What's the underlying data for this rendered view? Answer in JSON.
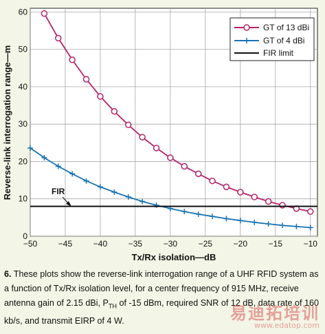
{
  "colors": {
    "background": "#f3f5e6",
    "gt13": "#b32469",
    "gt4": "#1874b4",
    "fir": "#111111"
  },
  "chart_data": {
    "type": "line",
    "xlabel": "Tx/Rx isolation—dB",
    "ylabel": "Reverse-link interrogation range—m",
    "xlim": [
      -50,
      -9
    ],
    "ylim": [
      0,
      61
    ],
    "x_ticks": [
      -50,
      -45,
      -40,
      -35,
      -30,
      -25,
      -20,
      -15,
      -10
    ],
    "y_ticks": [
      0,
      10,
      20,
      30,
      40,
      50,
      60
    ],
    "grid": true,
    "legend_position": "top-right",
    "annotation": "FIR",
    "series": [
      {
        "name": "GT of 13 dBi",
        "color": "#b32469",
        "marker": "circle",
        "x": [
          -48,
          -46,
          -44,
          -42,
          -40,
          -38,
          -36,
          -34,
          -32,
          -30,
          -28,
          -26,
          -24,
          -22,
          -20,
          -18,
          -16,
          -14,
          -12,
          -10
        ],
        "y": [
          59.6,
          53.0,
          47.2,
          42.0,
          37.4,
          33.4,
          29.8,
          26.5,
          23.6,
          21.0,
          18.7,
          16.7,
          14.8,
          13.2,
          11.8,
          10.5,
          9.3,
          8.3,
          7.4,
          6.6
        ]
      },
      {
        "name": "GT of 4 dBi",
        "color": "#1874b4",
        "marker": "plus",
        "x": [
          -50,
          -48,
          -46,
          -44,
          -42,
          -40,
          -38,
          -36,
          -34,
          -32,
          -30,
          -28,
          -26,
          -24,
          -22,
          -20,
          -18,
          -16,
          -14,
          -12,
          -10
        ],
        "y": [
          23.6,
          21.0,
          18.7,
          16.7,
          14.8,
          13.2,
          11.8,
          10.5,
          9.3,
          8.3,
          7.4,
          6.6,
          5.9,
          5.3,
          4.7,
          4.2,
          3.7,
          3.3,
          2.9,
          2.6,
          2.3
        ]
      },
      {
        "name": "FIR limit",
        "color": "#111111",
        "marker": "none",
        "x": [
          -50,
          -9
        ],
        "y": [
          8.0,
          8.0
        ]
      }
    ]
  },
  "caption": {
    "figure_number": "6.",
    "text_before_sub": "These plots show the reverse-link interrogation range of a UHF RFID system as a function of Tx/Rx isolation level, for a center frequency of 915 MHz, receive antenna gain of 2.15 dBi, P",
    "sub": "TH",
    "text_after_sub": " of -15 dBm, required SNR of 12 dB, data rate of 160 kb/s, and transmit EIRP of 4 W."
  },
  "watermark": {
    "main": "易迪拓培训",
    "url": "www.edatop.com"
  }
}
